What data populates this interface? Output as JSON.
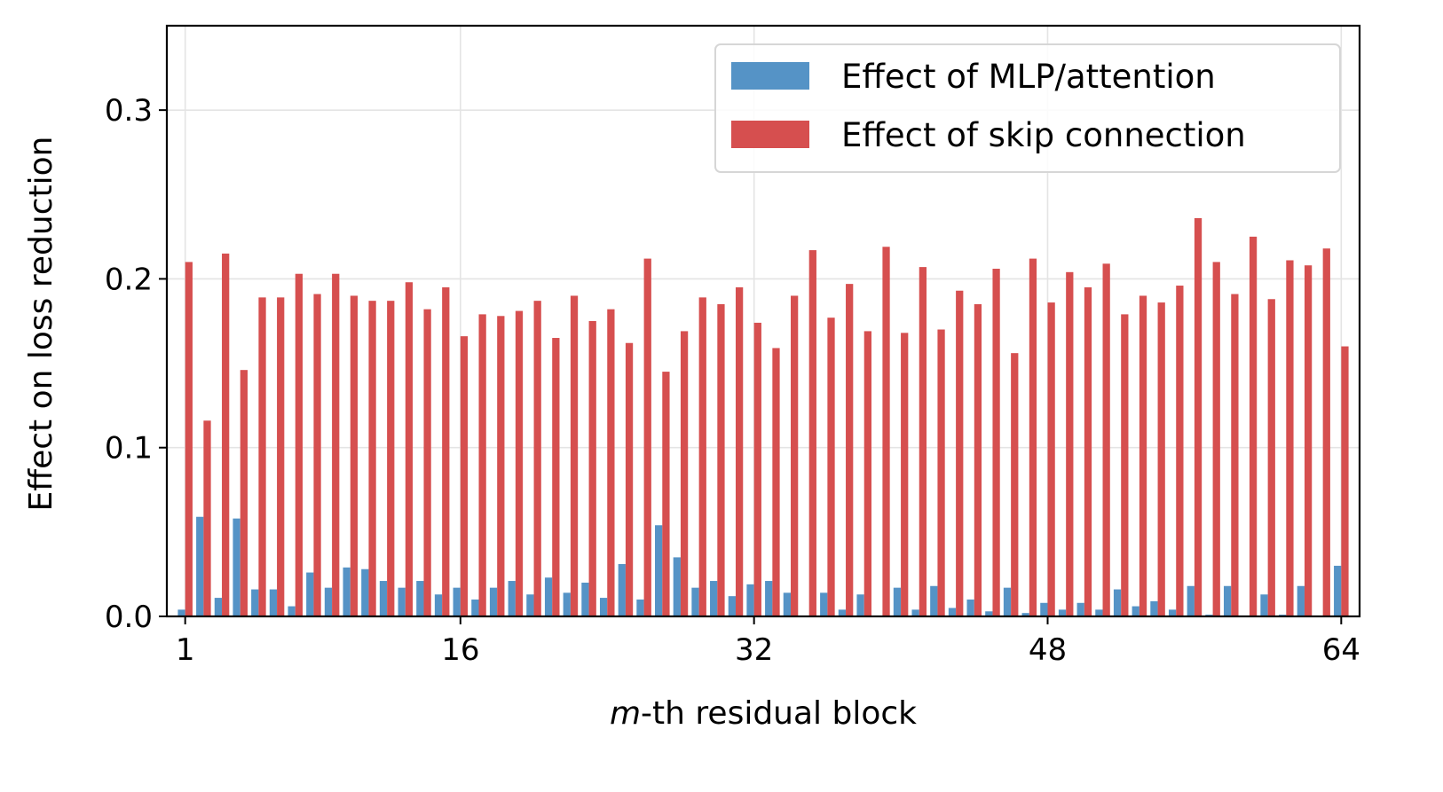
{
  "chart_data": {
    "type": "bar",
    "xlabel": "m-th residual block",
    "xlabel_parts": {
      "italic": "m",
      "rest": "-th residual block"
    },
    "ylabel": "Effect on loss reduction",
    "xlim": [
      0,
      65
    ],
    "ylim": [
      0,
      0.35
    ],
    "grid": true,
    "legend_position": "top-right",
    "x_ticks": [
      1,
      16,
      32,
      48,
      64
    ],
    "x_tick_labels": [
      "1",
      "16",
      "32",
      "48",
      "64"
    ],
    "y_ticks": [
      0.0,
      0.1,
      0.2,
      0.3
    ],
    "y_tick_labels": [
      "0.0",
      "0.1",
      "0.2",
      "0.3"
    ],
    "categories": [
      1,
      2,
      3,
      4,
      5,
      6,
      7,
      8,
      9,
      10,
      11,
      12,
      13,
      14,
      15,
      16,
      17,
      18,
      19,
      20,
      21,
      22,
      23,
      24,
      25,
      26,
      27,
      28,
      29,
      30,
      31,
      32,
      33,
      34,
      35,
      36,
      37,
      38,
      39,
      40,
      41,
      42,
      43,
      44,
      45,
      46,
      47,
      48,
      49,
      50,
      51,
      52,
      53,
      54,
      55,
      56,
      57,
      58,
      59,
      60,
      61,
      62,
      63,
      64
    ],
    "series": [
      {
        "name": "Effect of MLP/attention",
        "color": "#5593c6",
        "values": [
          0.004,
          0.059,
          0.011,
          0.058,
          0.016,
          0.016,
          0.006,
          0.026,
          0.017,
          0.029,
          0.028,
          0.021,
          0.017,
          0.021,
          0.013,
          0.017,
          0.01,
          0.017,
          0.021,
          0.013,
          0.023,
          0.014,
          0.02,
          0.011,
          0.031,
          0.01,
          0.054,
          0.035,
          0.017,
          0.021,
          0.012,
          0.019,
          0.021,
          0.014,
          0.0,
          0.014,
          0.004,
          0.013,
          0.0,
          0.017,
          0.004,
          0.018,
          0.005,
          0.01,
          0.003,
          0.017,
          0.002,
          0.008,
          0.004,
          0.008,
          0.004,
          0.016,
          0.006,
          0.009,
          0.004,
          0.018,
          0.001,
          0.018,
          0.0,
          0.013,
          0.001,
          0.018,
          0.0,
          0.03
        ]
      },
      {
        "name": "Effect of skip connection",
        "color": "#d64f4f",
        "values": [
          0.21,
          0.116,
          0.215,
          0.146,
          0.189,
          0.189,
          0.203,
          0.191,
          0.203,
          0.19,
          0.187,
          0.187,
          0.198,
          0.182,
          0.195,
          0.166,
          0.179,
          0.178,
          0.181,
          0.187,
          0.165,
          0.19,
          0.175,
          0.182,
          0.162,
          0.212,
          0.145,
          0.169,
          0.189,
          0.185,
          0.195,
          0.174,
          0.159,
          0.19,
          0.217,
          0.177,
          0.197,
          0.169,
          0.219,
          0.168,
          0.207,
          0.17,
          0.193,
          0.185,
          0.206,
          0.156,
          0.212,
          0.186,
          0.204,
          0.195,
          0.209,
          0.179,
          0.19,
          0.186,
          0.196,
          0.236,
          0.21,
          0.191,
          0.225,
          0.188,
          0.211,
          0.208,
          0.218,
          0.16
        ]
      }
    ]
  }
}
